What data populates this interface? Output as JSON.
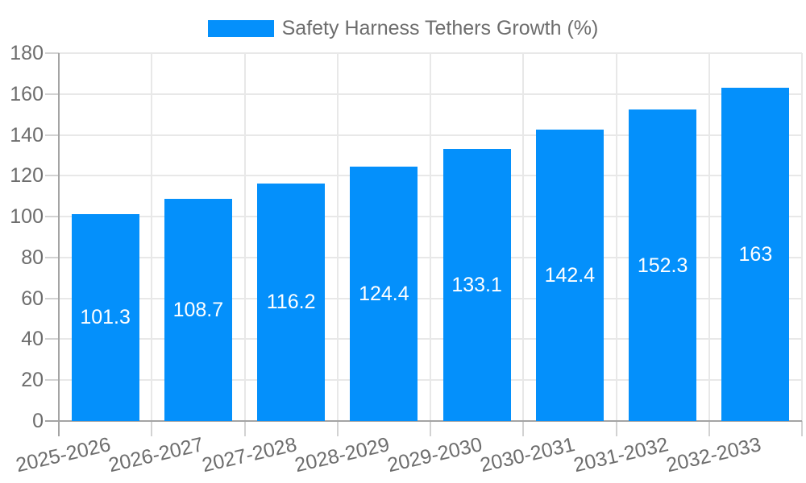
{
  "chart_data": {
    "type": "bar",
    "title": "",
    "legend_position": "top",
    "series": [
      {
        "name": "Safety Harness Tethers Growth (%)",
        "values": [
          101.3,
          108.7,
          116.2,
          124.4,
          133.1,
          142.4,
          152.3,
          163
        ]
      }
    ],
    "value_labels": [
      "101.3",
      "108.7",
      "116.2",
      "124.4",
      "133.1",
      "142.4",
      "152.3",
      "163"
    ],
    "categories": [
      "2025-2026",
      "2026-2027",
      "2027-2028",
      "2028-2029",
      "2029-2030",
      "2030-2031",
      "2031-2032",
      "2032-2033"
    ],
    "xlabel": "",
    "ylabel": "",
    "ylim": [
      0,
      180
    ],
    "y_ticks": [
      0,
      20,
      40,
      60,
      80,
      100,
      120,
      140,
      160,
      180
    ],
    "grid": "horizontal-and-vertical",
    "colors": {
      "bar": "#0490fb",
      "axis_text": "#6d6d6d",
      "value_label_text": "#ffffff",
      "gridline": "#e8e8e8",
      "axis_line": "#a4a4a4",
      "tick_mark": "#d2d2d2",
      "background": "#ffffff"
    }
  }
}
